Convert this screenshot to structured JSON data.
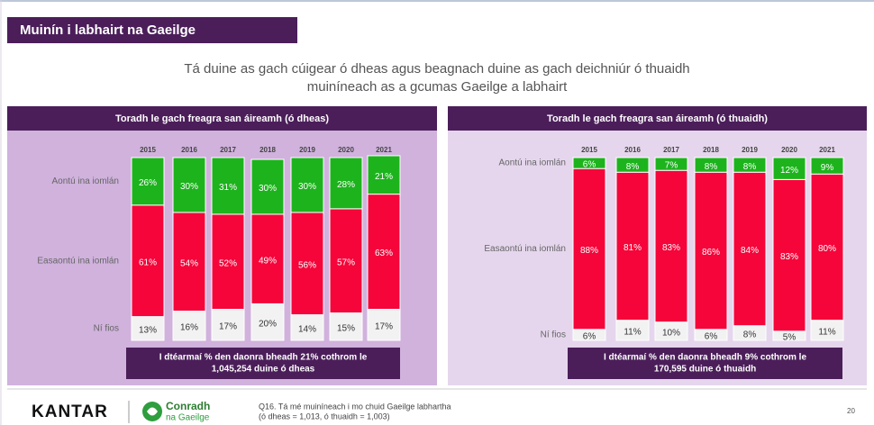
{
  "header": {
    "title": "Muinín i labhairt na Gaeilge",
    "subtitle": [
      "Tá duine as gach cúigear ó dheas agus beagnach duine as gach deichniúr ó thuaidh",
      "muiníneach as a gcumas Gaeilge a labhairt"
    ]
  },
  "chart_data": [
    {
      "type": "bar",
      "stacked": true,
      "title": "Toradh le gach freagra san áireamh (ó dheas)",
      "categories": [
        "2015",
        "2016",
        "2017",
        "2018",
        "2019",
        "2020",
        "2021"
      ],
      "ylim": [
        0,
        100
      ],
      "series": [
        {
          "name": "Aontú ina iomlán",
          "color": "#1db31d",
          "values": [
            26,
            30,
            31,
            30,
            30,
            28,
            21
          ],
          "value_labels": [
            "26%",
            "30%",
            "31%",
            "30%",
            "30%",
            "28%",
            "21%"
          ]
        },
        {
          "name": "Easaontú ina iomlán",
          "color": "#f5053a",
          "values": [
            61,
            54,
            52,
            49,
            56,
            57,
            63
          ],
          "value_labels": [
            "61%",
            "54%",
            "52%",
            "49%",
            "56%",
            "57%",
            "63%"
          ]
        },
        {
          "name": "Ní fios",
          "color": "#f2f2f2",
          "values": [
            13,
            16,
            17,
            20,
            14,
            15,
            17
          ],
          "value_labels": [
            "13%",
            "16%",
            "17%",
            "20%",
            "14%",
            "15%",
            "17%"
          ]
        }
      ],
      "note": [
        "I dtéarmaí % den daonra bheadh 21% cothrom le",
        "1,045,254 duine ó dheas"
      ]
    },
    {
      "type": "bar",
      "stacked": true,
      "title": "Toradh le gach freagra san áireamh (ó thuaidh)",
      "categories": [
        "2015",
        "2016",
        "2017",
        "2018",
        "2019",
        "2020",
        "2021"
      ],
      "ylim": [
        0,
        100
      ],
      "series": [
        {
          "name": "Aontú ina iomlán",
          "color": "#1db31d",
          "values": [
            6,
            8,
            7,
            8,
            8,
            12,
            9
          ],
          "value_labels": [
            "6%",
            "8%",
            "7%",
            "8%",
            "8%",
            "12%",
            "9%"
          ]
        },
        {
          "name": "Easaontú ina iomlán",
          "color": "#f5053a",
          "values": [
            88,
            81,
            83,
            86,
            84,
            83,
            80
          ],
          "value_labels": [
            "88%",
            "81%",
            "83%",
            "86%",
            "84%",
            "83%",
            "80%"
          ]
        },
        {
          "name": "Ní fios",
          "color": "#f2f2f2",
          "values": [
            6,
            11,
            10,
            6,
            8,
            5,
            11
          ],
          "value_labels": [
            "6%",
            "11%",
            "10%",
            "6%",
            "8%",
            "5%",
            "11%"
          ]
        }
      ],
      "note": [
        "I dtéarmaí % den daonra bheadh 9% cothrom le",
        "170,595 duine ó thuaidh"
      ]
    }
  ],
  "footer": {
    "brand": "KANTAR",
    "logo": [
      "Conradh",
      "na Gaeilge"
    ],
    "source": [
      "Q16. Tá mé muiníneach i mo chuid Gaeilge labhartha",
      "(ó dheas = 1,013, ó thuaidh = 1,003)"
    ],
    "page": "20"
  }
}
